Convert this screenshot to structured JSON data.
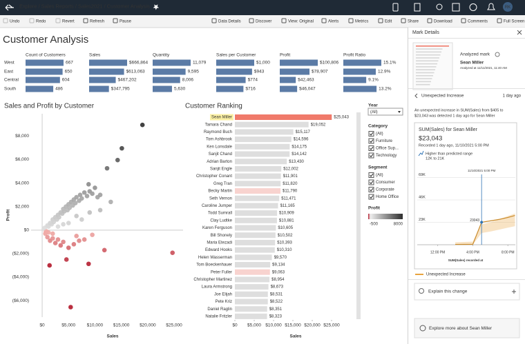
{
  "nav": {
    "breadcrumb": "Explore / Sales Reports / Sales2021 / Customer Analysis",
    "avatar": "RK"
  },
  "toolbar": {
    "left": [
      "Undo",
      "Redo",
      "Revert",
      "Refresh",
      "Pause"
    ],
    "right": [
      "Data Details",
      "Discover",
      "View: Original",
      "Alerts",
      "Metrics",
      "Edit",
      "Share",
      "Download",
      "Comments",
      "Full Screen"
    ]
  },
  "dashboard": {
    "title": "Customer Analysis",
    "summary": {
      "color": "#5b7ba6",
      "regions": [
        "West",
        "East",
        "Central",
        "South"
      ],
      "columns": [
        {
          "name": "Count of Customers",
          "values": [
            667,
            650,
            604,
            486
          ]
        },
        {
          "name": "Sales",
          "values": [
            666864,
            613063,
            467202,
            347795
          ],
          "value_labels": [
            "$666,864",
            "$613,063",
            "$467,202",
            "$347,795"
          ]
        },
        {
          "name": "Quantity",
          "values": [
            11079,
            9595,
            8006,
            5630
          ],
          "value_labels": [
            "11,079",
            "9,595",
            "8,006",
            "5,630"
          ]
        },
        {
          "name": "Sales per Customer",
          "values": [
            1000,
            943,
            774,
            716
          ],
          "value_labels": [
            "$1,000",
            "$943",
            "$774",
            "$716"
          ]
        },
        {
          "name": "Profit",
          "values": [
            100806,
            78907,
            42463,
            46047
          ],
          "value_labels": [
            "$100,806",
            "$78,907",
            "$42,463",
            "$46,047"
          ]
        },
        {
          "name": "Profit Ratio",
          "values": [
            15.1,
            12.9,
            9.1,
            13.2
          ],
          "value_labels": [
            "15.1%",
            "12.9%",
            "9.1%",
            "13.2%"
          ]
        }
      ]
    },
    "scatter": {
      "type": "scatter",
      "title": "Sales and Profit by Customer",
      "x_label": "Sales",
      "y_label": "Profit",
      "xlim": [
        -2100,
        26700
      ],
      "ylim": [
        -7400,
        9900
      ],
      "xticks": [
        {
          "value": 0,
          "label": "$0"
        },
        {
          "value": 5000,
          "label": "$5,000"
        },
        {
          "value": 10000,
          "label": "$10,000"
        },
        {
          "value": 15000,
          "label": "$15,000"
        },
        {
          "value": 20000,
          "label": "$20,000"
        },
        {
          "value": 25000,
          "label": "$25,000"
        }
      ],
      "yticks": [
        {
          "value": 8000,
          "label": "$8,000"
        },
        {
          "value": 6000,
          "label": "$6,000"
        },
        {
          "value": 4000,
          "label": "$4,000"
        },
        {
          "value": 2000,
          "label": "$2,000"
        },
        {
          "value": 0,
          "label": "$0"
        },
        {
          "value": -2000,
          "label": "($2,000)"
        },
        {
          "value": -4000,
          "label": "($4,000)"
        },
        {
          "value": -6000,
          "label": "($6,000)"
        }
      ],
      "x": [
        500,
        800,
        1000,
        1200,
        1500,
        1800,
        2000,
        2200,
        2500,
        2800,
        3000,
        3200,
        3500,
        3800,
        4000,
        4200,
        4500,
        4800,
        5000,
        5200,
        5500,
        5800,
        6000,
        6300,
        6500,
        7000,
        7200,
        7500,
        8000,
        8500,
        8800,
        9000,
        9500,
        10000,
        10500,
        11000,
        12300,
        14300,
        15100,
        19000,
        6500,
        7500,
        9000,
        11000,
        13000,
        3000,
        4000,
        5000,
        600,
        1000,
        1500,
        2000,
        2500,
        3000,
        3500,
        4000,
        4600,
        1400,
        5000,
        6000,
        7000,
        8000,
        8800,
        11800,
        5400,
        24700,
        6500,
        9500,
        1200,
        2000,
        300,
        700
      ],
      "y": [
        200,
        -100,
        400,
        300,
        600,
        500,
        900,
        700,
        1100,
        900,
        1300,
        1100,
        1500,
        1400,
        1800,
        1600,
        2000,
        1700,
        2200,
        1900,
        2400,
        2100,
        2600,
        2300,
        2800,
        2500,
        3000,
        2700,
        3200,
        2900,
        3900,
        3300,
        3100,
        3600,
        2800,
        3000,
        5260,
        5960,
        6960,
        8950,
        1200,
        900,
        1500,
        1700,
        2400,
        300,
        500,
        600,
        -300,
        -600,
        -900,
        -700,
        -1100,
        -800,
        -1300,
        -1000,
        -2500,
        -3000,
        -1500,
        -1200,
        -900,
        -800,
        -2870,
        -1700,
        -6550,
        -1930,
        -500,
        -400,
        -200,
        -300,
        100,
        -150
      ]
    },
    "ranking": {
      "type": "bar",
      "title": "Customer Ranking",
      "x_label": "Sales",
      "xlim": [
        0,
        31250
      ],
      "xticks": [
        {
          "value": 0,
          "label": "$0"
        },
        {
          "value": 5000,
          "label": "$5,000"
        },
        {
          "value": 10000,
          "label": "$10,000"
        },
        {
          "value": 15000,
          "label": "$15,000"
        },
        {
          "value": 20000,
          "label": "$20,000"
        },
        {
          "value": 25000,
          "label": "$25,000"
        }
      ],
      "selected_index": 0,
      "categories": [
        "Sean Miller",
        "Tamara Chand",
        "Raymond Buch",
        "Tom Ashbrook",
        "Ken Lonsdale",
        "Sanjit Chand",
        "Adrian Barton",
        "Sanjit Engle",
        "Christopher Conant",
        "Greg Tran",
        "Becky Martin",
        "Seth Vernon",
        "Caroline Jumper",
        "Todd Sumrall",
        "Clay Ludtke",
        "Karen Ferguson",
        "Bill Shonely",
        "Maria Etezadi",
        "Edward Hooks",
        "Helen Wasserman",
        "Tom Boeckenhauer",
        "Peter Fuller",
        "Christopher Martinez",
        "Laura Armstrong",
        "Joe Elijah",
        "Pete Kriz",
        "Daniel Raglin",
        "Natalie Fritzler"
      ],
      "values": [
        25043,
        19052,
        15117,
        14596,
        14175,
        14142,
        13430,
        12002,
        11901,
        11820,
        11790,
        11471,
        11165,
        10909,
        10881,
        10605,
        10502,
        10393,
        10310,
        9570,
        9134,
        9063,
        8954,
        8673,
        8531,
        8522,
        8351,
        8323
      ],
      "value_labels": [
        "$25,043",
        "$19,052",
        "$15,117",
        "$14,596",
        "$14,175",
        "$14,142",
        "$13,430",
        "$12,002",
        "$11,901",
        "$11,820",
        "$11,790",
        "$11,471",
        "$11,165",
        "$10,909",
        "$10,881",
        "$10,605",
        "$10,502",
        "$10,393",
        "$10,310",
        "$9,570",
        "$9,134",
        "$9,063",
        "$8,954",
        "$8,673",
        "$8,531",
        "$8,522",
        "$8,351",
        "$8,323"
      ],
      "colors": [
        "#f07a6a",
        "#dedede",
        "#dedede",
        "#dedede",
        "#dedede",
        "#dedede",
        "#dedede",
        "#dedede",
        "#dedede",
        "#dedede",
        "#f8d3cf",
        "#dedede",
        "#dedede",
        "#dedede",
        "#dedede",
        "#dedede",
        "#dedede",
        "#dedede",
        "#dedede",
        "#dedede",
        "#dedede",
        "#f8d3cf",
        "#dedede",
        "#dedede",
        "#dedede",
        "#dedede",
        "#dedede",
        "#dedede"
      ]
    }
  },
  "filters": {
    "year": {
      "title": "Year",
      "selected": "(All)"
    },
    "category": {
      "title": "Category",
      "items": [
        "(All)",
        "Furniture",
        "Office Sup...",
        "Technology"
      ]
    },
    "segment": {
      "title": "Segment",
      "items": [
        "(All)",
        "Consumer",
        "Corporate",
        "Home Office"
      ]
    },
    "profit_legend": {
      "title": "Profit",
      "range": [
        -500,
        8000
      ]
    }
  },
  "mark_details": {
    "title": "Mark Details",
    "analyzed_label": "Analyzed mark",
    "mark_name": "Sean Miller",
    "analyzed_at": "Analyzed at 11/11/2021, 11:40 AM",
    "insight": {
      "title": "Unexpected Increase",
      "age": "1 day ago",
      "description": [
        "An unexpected increase in SUM(Sales) from $405 to",
        "$23,043 was detected 1 day ago for Sean Miller"
      ],
      "card_title": "SUM(Sales) for Sean Miller",
      "card_value": "$23,043",
      "recorded": "Recorded 1 day ago, 11/10/2021 5:00 PM",
      "range_label": "Higher than predicted range",
      "range_value": "12K to 21K",
      "chart": {
        "type": "line",
        "x_label": "SUM(Sales) recorded at",
        "annotation": "11/10/2021 5:00 PM",
        "highlight_index": 3,
        "xlim": [
          9.2,
          21
        ],
        "ylim": [
          0,
          75000
        ],
        "xticks": [
          {
            "value": 12,
            "label": "12:00 PM"
          },
          {
            "value": 16,
            "label": "4:00 PM"
          },
          {
            "value": 20,
            "label": "8:00 PM"
          }
        ],
        "yticks": [
          {
            "value": 23000,
            "label": "23K"
          },
          {
            "value": 46000,
            "label": "46K"
          },
          {
            "value": 69000,
            "label": "69K"
          }
        ],
        "x": [
          14,
          15,
          16,
          17,
          18,
          19,
          20,
          20.8
        ],
        "values": [
          300,
          350,
          405,
          23043,
          24500,
          26000,
          28000,
          30000
        ],
        "band_lower": [
          0,
          0,
          0,
          12000,
          13500,
          15500,
          17500,
          19000
        ],
        "band_upper": [
          2500,
          2800,
          3200,
          21000,
          23000,
          26000,
          29500,
          32000
        ],
        "color": "#e8a33d"
      },
      "legend": "Unexpected Increase"
    },
    "explain": "Explain this change",
    "explore": "Explore more about Sean Miller"
  }
}
